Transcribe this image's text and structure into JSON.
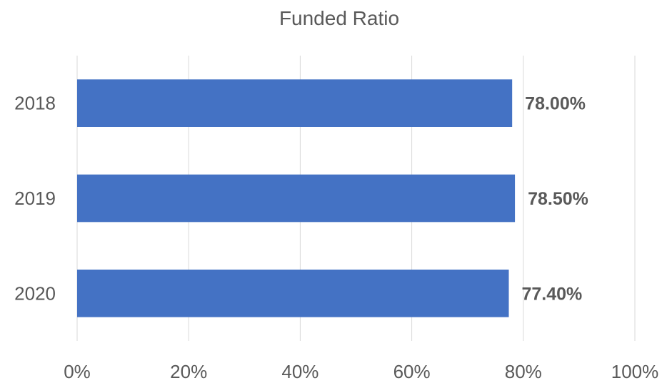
{
  "chart_data": {
    "type": "bar",
    "orientation": "horizontal",
    "title": "Funded Ratio",
    "categories": [
      "2018",
      "2019",
      "2020"
    ],
    "values": [
      78.0,
      78.5,
      77.4
    ],
    "data_labels": [
      "78.00%",
      "78.50%",
      "77.40%"
    ],
    "xlim": [
      0,
      100
    ],
    "x_ticks": [
      0,
      20,
      40,
      60,
      80,
      100
    ],
    "x_tick_labels": [
      "0%",
      "20%",
      "40%",
      "60%",
      "80%",
      "100%"
    ],
    "xlabel": "",
    "ylabel": "",
    "grid": "vertical",
    "legend": "none",
    "bar_color": "#4472c4"
  }
}
